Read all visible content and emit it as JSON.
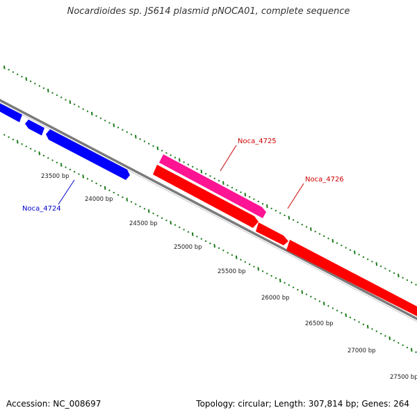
{
  "title": "Nocardioides sp. JS614 plasmid pNOCA01, complete sequence",
  "accession_text": "Accession: NC_008697",
  "topology_text": "Topology: circular; Length: 307,814 bp; Genes: 264",
  "colors": {
    "backbone": "#808080",
    "reverse_gene": "#0000ff",
    "forward_gene": "#ff0000",
    "highlight_gene": "#ff1493",
    "tick_marks": "#1a7a1a",
    "label_text": "#1a1a1a"
  },
  "scale_labels": [
    "23500 bp",
    "24000 bp",
    "24500 bp",
    "25000 bp",
    "25500 bp",
    "26000 bp",
    "26500 bp",
    "27000 bp",
    "27500 bp"
  ],
  "gene_labels": {
    "noca_4724": "Noca_4724",
    "noca_4725": "Noca_4725",
    "noca_4726": "Noca_4726"
  }
}
